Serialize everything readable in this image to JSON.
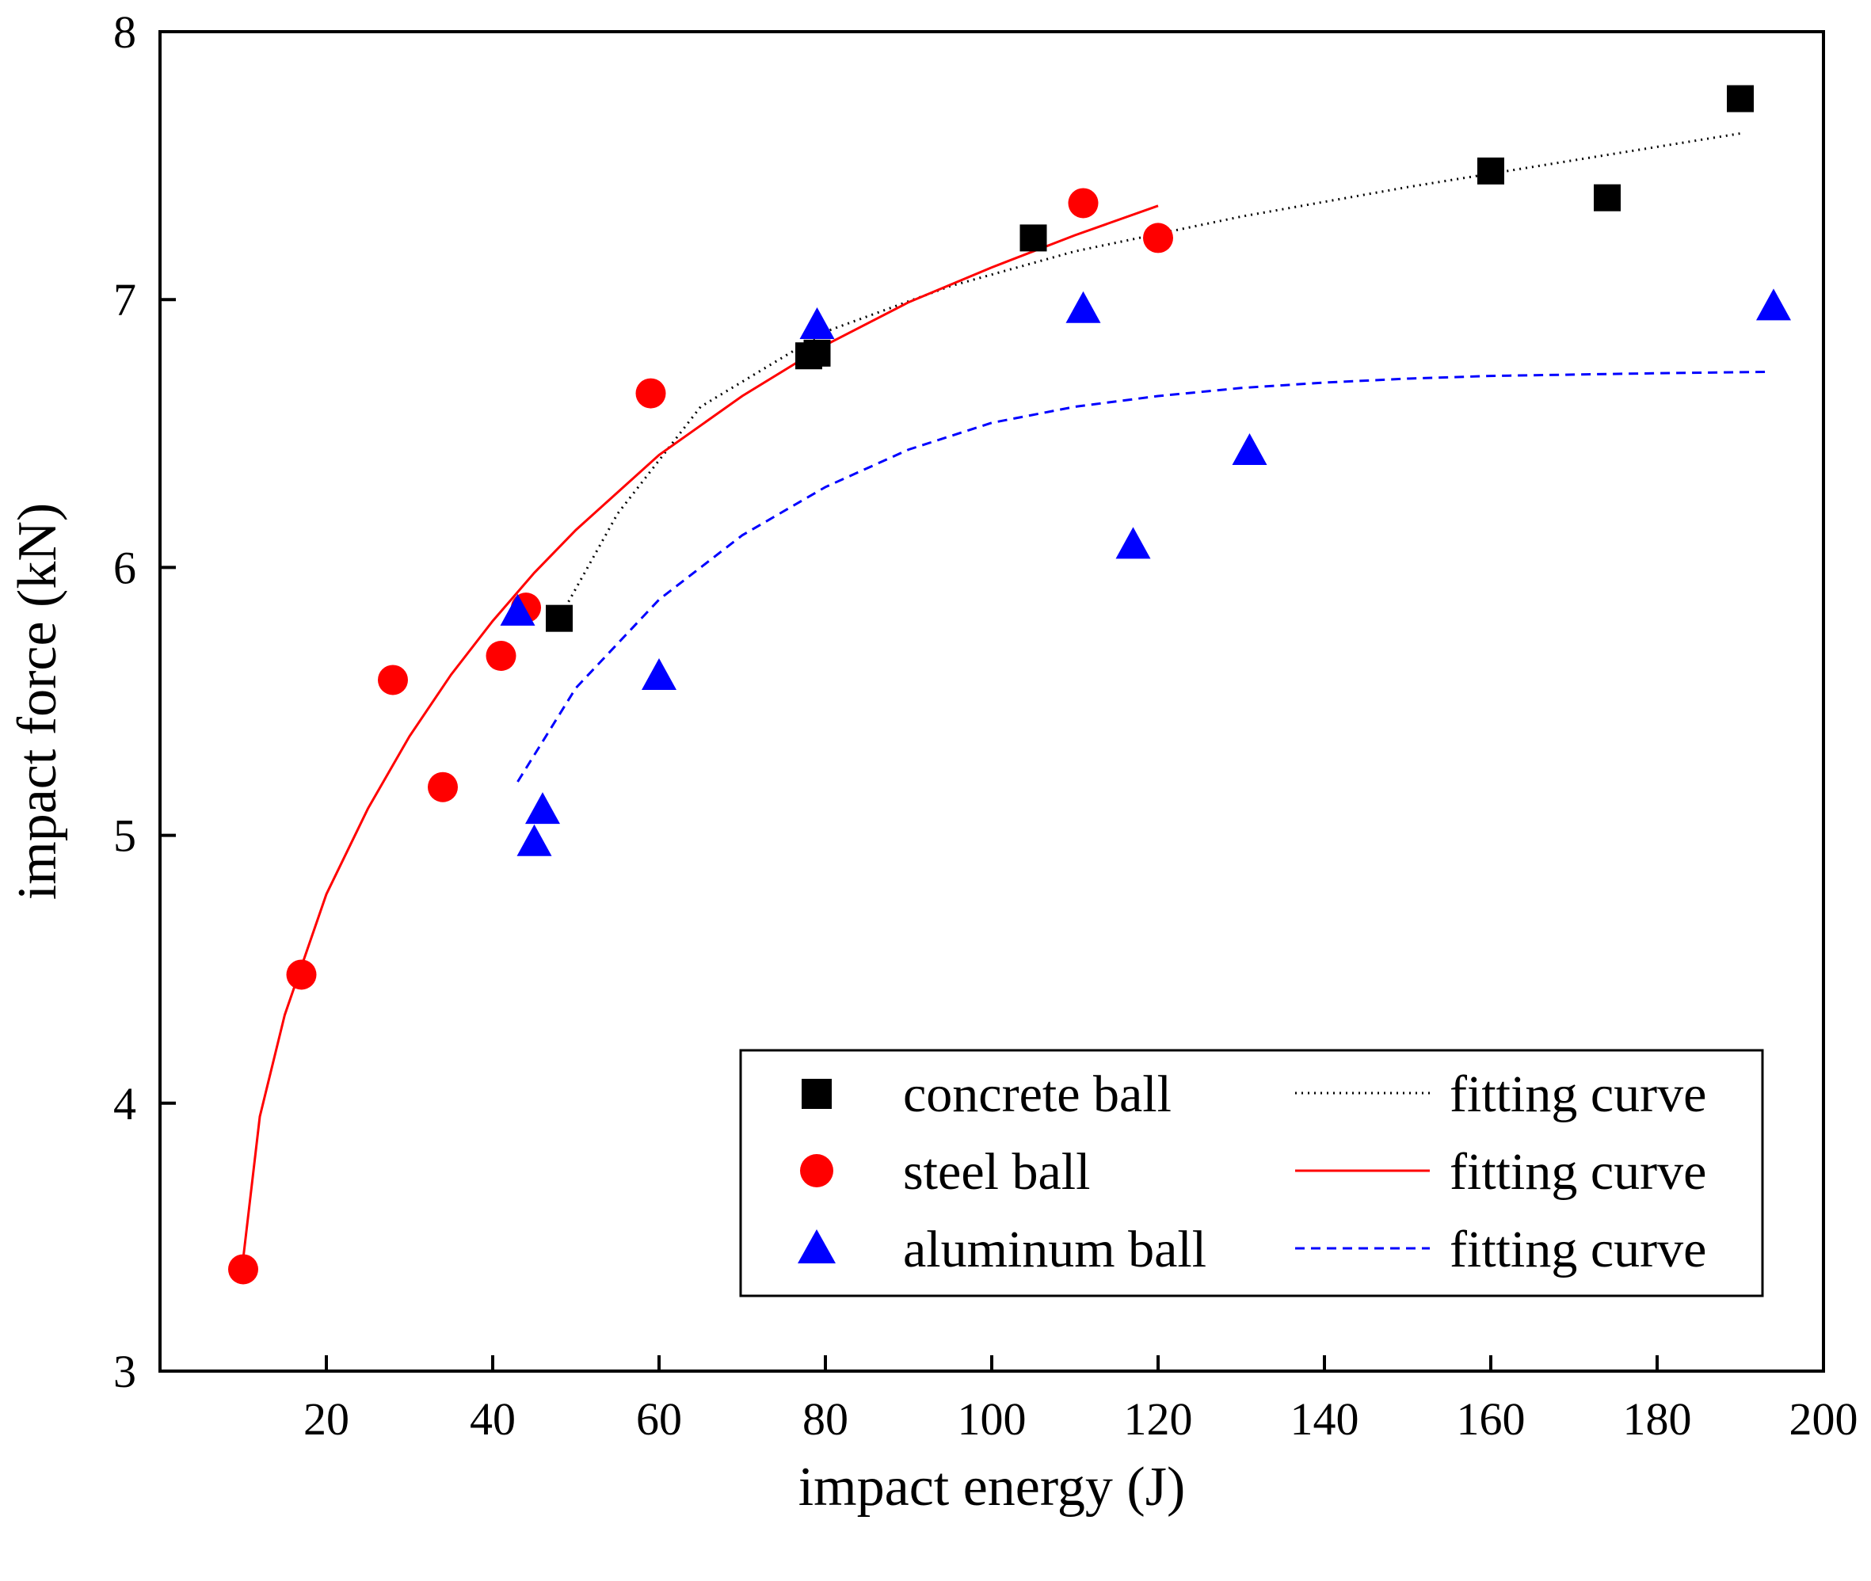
{
  "chart_data": {
    "type": "scatter",
    "title": "",
    "xlabel": "impact energy (J)",
    "ylabel": "impact force (kN)",
    "xlim": [
      0,
      200
    ],
    "ylim": [
      3,
      8
    ],
    "x_ticks": [
      20,
      40,
      60,
      80,
      100,
      120,
      140,
      160,
      180,
      200
    ],
    "y_ticks": [
      3,
      4,
      5,
      6,
      7,
      8
    ],
    "x_tick_labels": [
      "20",
      "40",
      "60",
      "80",
      "100",
      "120",
      "140",
      "160",
      "180",
      "200"
    ],
    "y_tick_labels": [
      "3",
      "4",
      "5",
      "6",
      "7",
      "8"
    ],
    "grid": false,
    "legend_position": "bottom-right",
    "series": [
      {
        "name": "concrete ball",
        "marker": "square",
        "color": "#000000",
        "points": [
          [
            48,
            5.81
          ],
          [
            78,
            6.79
          ],
          [
            79,
            6.8
          ],
          [
            105,
            7.23
          ],
          [
            160,
            7.48
          ],
          [
            174,
            7.38
          ],
          [
            190,
            7.75
          ]
        ]
      },
      {
        "name": "steel ball",
        "marker": "circle",
        "color": "#ff0000",
        "points": [
          [
            10,
            3.38
          ],
          [
            17,
            4.48
          ],
          [
            28,
            5.58
          ],
          [
            34,
            5.18
          ],
          [
            41,
            5.67
          ],
          [
            44,
            5.85
          ],
          [
            59,
            6.65
          ],
          [
            111,
            7.36
          ],
          [
            120,
            7.23
          ]
        ]
      },
      {
        "name": "aluminum ball",
        "marker": "triangle",
        "color": "#0000ff",
        "points": [
          [
            43,
            5.83
          ],
          [
            45,
            4.97
          ],
          [
            46,
            5.09
          ],
          [
            60,
            5.59
          ],
          [
            79,
            6.9
          ],
          [
            111,
            6.96
          ],
          [
            117,
            6.08
          ],
          [
            131,
            6.43
          ],
          [
            194,
            6.97
          ]
        ]
      }
    ],
    "fits": [
      {
        "name": "fitting curve",
        "for": "concrete ball",
        "style": "dotted",
        "color": "#000000",
        "points": [
          [
            48,
            5.81
          ],
          [
            55,
            6.2
          ],
          [
            65,
            6.6
          ],
          [
            80,
            6.88
          ],
          [
            95,
            7.05
          ],
          [
            110,
            7.18
          ],
          [
            130,
            7.31
          ],
          [
            150,
            7.42
          ],
          [
            170,
            7.52
          ],
          [
            190,
            7.62
          ]
        ]
      },
      {
        "name": "fitting curve",
        "for": "steel ball",
        "style": "solid",
        "color": "#ff0000",
        "points": [
          [
            10,
            3.42
          ],
          [
            12,
            3.95
          ],
          [
            15,
            4.33
          ],
          [
            20,
            4.78
          ],
          [
            25,
            5.1
          ],
          [
            30,
            5.37
          ],
          [
            35,
            5.6
          ],
          [
            40,
            5.8
          ],
          [
            45,
            5.98
          ],
          [
            50,
            6.14
          ],
          [
            60,
            6.42
          ],
          [
            70,
            6.64
          ],
          [
            80,
            6.83
          ],
          [
            90,
            6.99
          ],
          [
            100,
            7.12
          ],
          [
            110,
            7.24
          ],
          [
            120,
            7.35
          ]
        ]
      },
      {
        "name": "fitting curve",
        "for": "aluminum ball",
        "style": "dashed",
        "color": "#0000ff",
        "points": [
          [
            43,
            5.2
          ],
          [
            50,
            5.55
          ],
          [
            60,
            5.88
          ],
          [
            70,
            6.12
          ],
          [
            80,
            6.3
          ],
          [
            90,
            6.44
          ],
          [
            100,
            6.54
          ],
          [
            110,
            6.6
          ],
          [
            120,
            6.64
          ],
          [
            130,
            6.67
          ],
          [
            140,
            6.69
          ],
          [
            150,
            6.705
          ],
          [
            160,
            6.715
          ],
          [
            170,
            6.72
          ],
          [
            180,
            6.725
          ],
          [
            193,
            6.73
          ]
        ]
      }
    ]
  }
}
